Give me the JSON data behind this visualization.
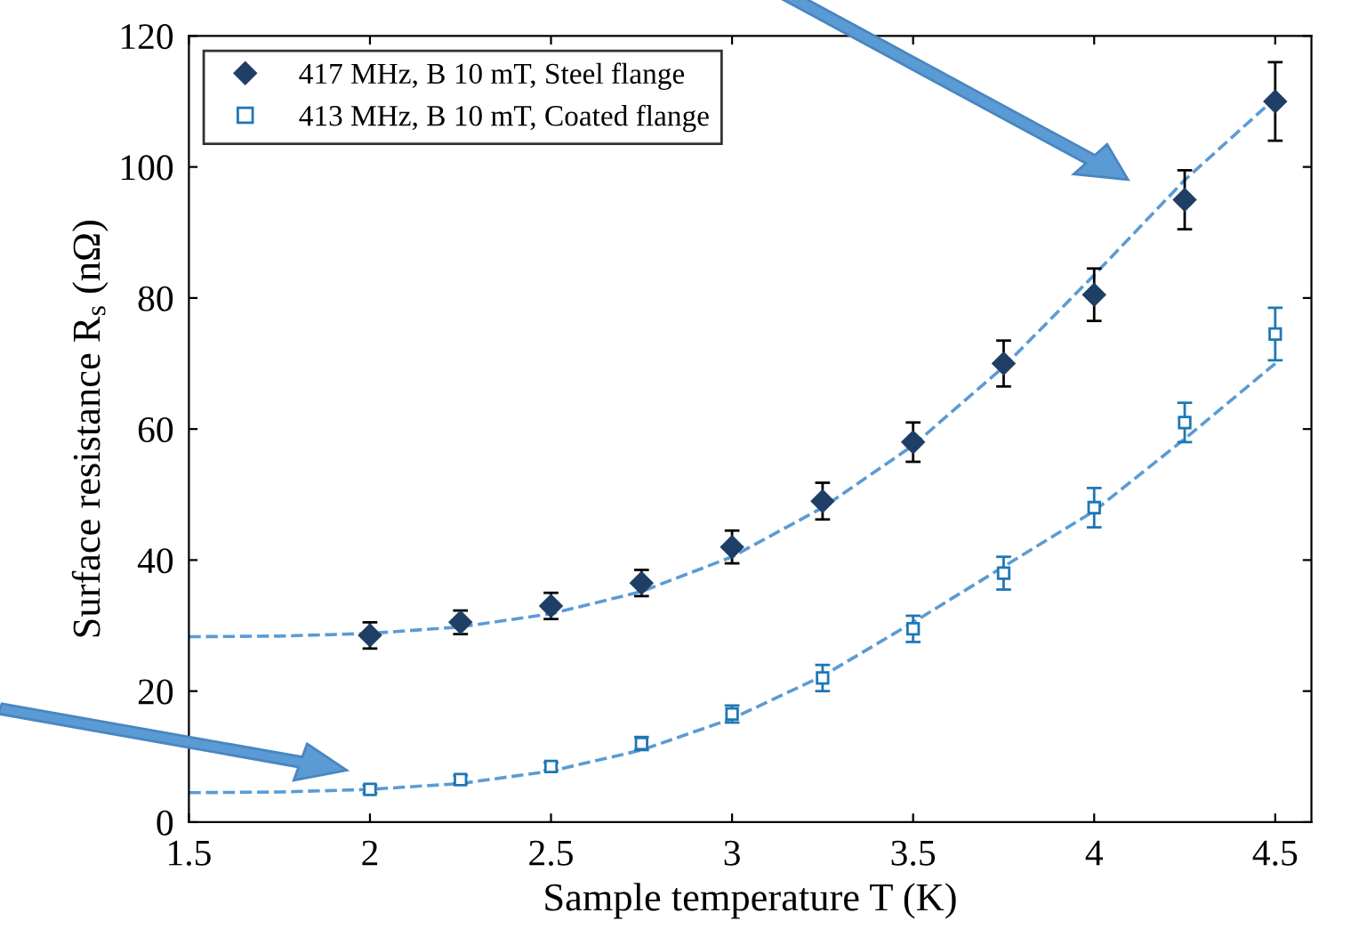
{
  "chart_data": {
    "type": "scatter",
    "xlabel": "Sample temperature T (K)",
    "ylabel": "Surface resistance R$_{s}$ (nΩ)",
    "x": [
      2,
      2.25,
      2.5,
      2.75,
      3,
      3.25,
      3.5,
      3.75,
      4,
      4.25,
      4.5
    ],
    "series": [
      {
        "name": "417 MHz, B 10 mT, Steel flange",
        "color": "#1f3f66",
        "marker": "diamond",
        "values": [
          28.5,
          30.5,
          33,
          36.5,
          42,
          49,
          58,
          70,
          80.5,
          95,
          110
        ],
        "errors": [
          2,
          1.8,
          2,
          2,
          2.5,
          2.8,
          3,
          3.5,
          4,
          4.5,
          6
        ]
      },
      {
        "name": "413 MHz, B 10 mT, Coated flange",
        "color": "#1f77b4",
        "marker": "square",
        "values": [
          5,
          6.5,
          8.5,
          12,
          16.5,
          22,
          29.5,
          38,
          48,
          61,
          74.5
        ],
        "errors": [
          0.6,
          0.6,
          0.6,
          1,
          1.3,
          2,
          2,
          2.5,
          3,
          3,
          4
        ]
      },
      {
        "type": "line",
        "color": "#5b9bd5",
        "line_style": "dashed",
        "marker": "none",
        "x": [
          1.5,
          1.75,
          2,
          2.25,
          2.5,
          2.75,
          3,
          3.25,
          3.5,
          3.75,
          4,
          4.25,
          4.5
        ],
        "values": [
          28.3,
          28.4,
          28.8,
          29.8,
          31.8,
          35.2,
          40.5,
          48,
          57.5,
          69.5,
          83.5,
          98,
          110.5
        ]
      },
      {
        "type": "line",
        "color": "#5b9bd5",
        "line_style": "dashed",
        "marker": "none",
        "x": [
          1.5,
          1.75,
          2,
          2.25,
          2.5,
          2.75,
          3,
          3.25,
          3.5,
          3.75,
          4,
          4.25,
          4.5
        ],
        "values": [
          4.5,
          4.6,
          5,
          5.9,
          7.8,
          11,
          15.8,
          22.3,
          30.5,
          39,
          47.5,
          58.5,
          70
        ]
      }
    ],
    "xlim": [
      1.5,
      4.6
    ],
    "xticks": [
      1.5,
      2,
      2.5,
      3,
      3.5,
      4,
      4.5
    ],
    "ylim": [
      0,
      120
    ],
    "yticks": [
      0,
      20,
      40,
      60,
      80,
      100,
      120
    ],
    "legend": "top left"
  }
}
